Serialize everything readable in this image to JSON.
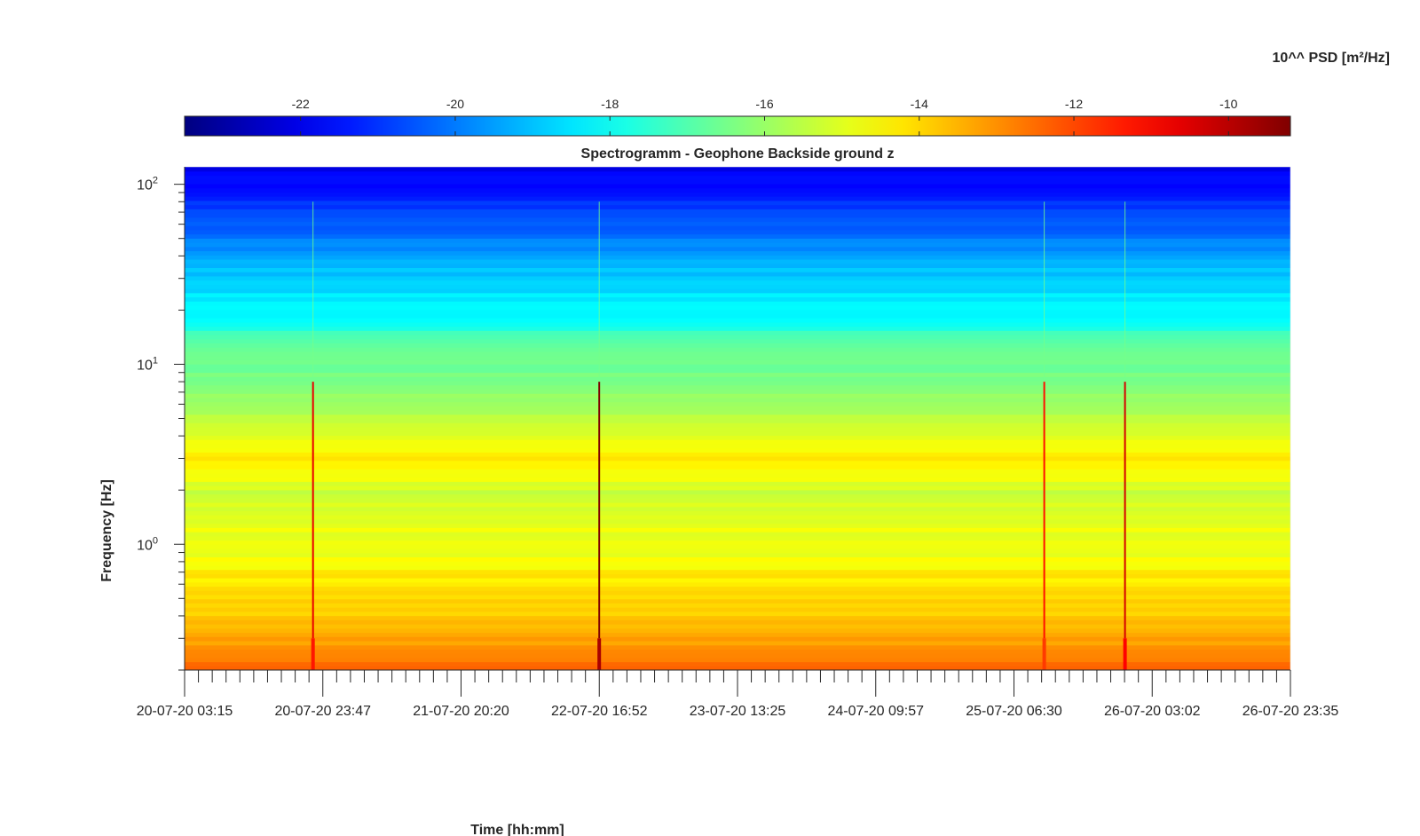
{
  "chart_data": {
    "type": "heatmap",
    "title": "Spectrogramm - Geophone Backside ground z",
    "xlabel": "Time [hh:mm]",
    "ylabel": "Frequency [Hz]",
    "x_ticks": [
      "20-07-20 03:15",
      "20-07-20 23:47",
      "21-07-20 20:20",
      "22-07-20 16:52",
      "23-07-20 13:25",
      "24-07-20 09:57",
      "25-07-20 06:30",
      "26-07-20 03:02",
      "26-07-20 23:35"
    ],
    "y_scale": "log",
    "y_ticks": [
      {
        "base": "10",
        "exp": "0",
        "value": 1
      },
      {
        "base": "10",
        "exp": "1",
        "value": 10
      },
      {
        "base": "10",
        "exp": "2",
        "value": 100
      }
    ],
    "ylim": [
      0.2,
      125
    ],
    "colorbar": {
      "label": "10^^ PSD [m²/Hz]",
      "location": "top",
      "colormap": "jet",
      "range": [
        -23.5,
        -9.2
      ],
      "ticks": [
        "-22",
        "-20",
        "-18",
        "-16",
        "-14",
        "-12",
        "-10"
      ],
      "tick_values": [
        -22,
        -20,
        -18,
        -16,
        -14,
        -12,
        -10
      ]
    },
    "spectral_profile": {
      "freq_hz": [
        0.2,
        0.25,
        0.3,
        0.4,
        0.55,
        0.7,
        0.85,
        1,
        1.5,
        2,
        2.5,
        3,
        4,
        5,
        7,
        10,
        13,
        15,
        17,
        20,
        30,
        50,
        70,
        100,
        125
      ],
      "log10_psd": [
        -12.3,
        -12.8,
        -13.3,
        -13.8,
        -14.0,
        -14.4,
        -14.8,
        -14.8,
        -15.0,
        -15.3,
        -14.6,
        -14.3,
        -14.8,
        -15.6,
        -16.2,
        -16.6,
        -17.0,
        -17.2,
        -18.0,
        -18.2,
        -18.8,
        -20.0,
        -20.8,
        -21.5,
        -22.0
      ]
    },
    "transient_events": [
      {
        "time": "20-07-20 22:20",
        "log10_psd_peak": -11.3
      },
      {
        "time": "22-07-20 16:52",
        "log10_psd_peak": -9.8
      },
      {
        "time": "25-07-20 11:00",
        "log10_psd_peak": -11.8
      },
      {
        "time": "25-07-20 23:00",
        "log10_psd_peak": -11.0
      }
    ],
    "grid": false,
    "legend": "none"
  }
}
